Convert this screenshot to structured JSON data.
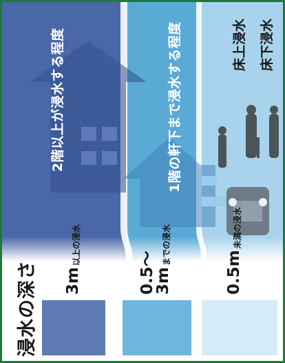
{
  "title": "浸水の深さ",
  "legend": [
    {
      "big": "3m",
      "small": "以上の浸水",
      "color": "#5f7bb4"
    },
    {
      "big_line1": "0.5～",
      "big_line2": "3m",
      "small": "までの浸水",
      "color": "#6fb6dd"
    },
    {
      "big": "0.5m",
      "small": "未満の浸水",
      "color": "#d5ebf7"
    }
  ],
  "zones": {
    "deep": "2階以上が浸水する程度",
    "middle": "1階の軒下まで浸水する程度"
  },
  "floor_labels": {
    "above": "床上浸水",
    "below": "床下浸水"
  },
  "colors": {
    "deep": "#4a67a8",
    "middle": "#5aaad6",
    "shallow": "#a9d3ec",
    "frame": "#1e7a3a"
  }
}
